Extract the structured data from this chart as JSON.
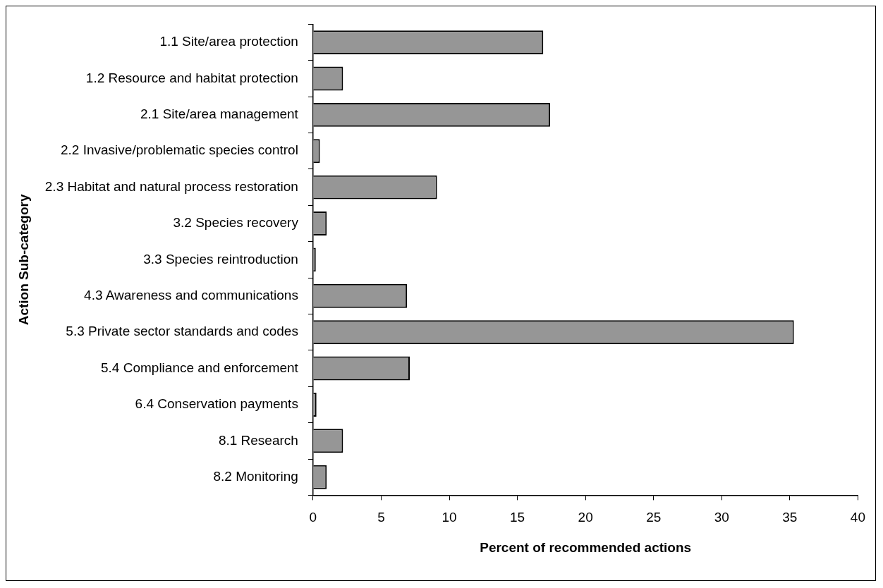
{
  "chart_data": {
    "type": "bar",
    "orientation": "horizontal",
    "xlabel": "Percent of recommended actions",
    "ylabel": "Action Sub-category",
    "categories": [
      "1.1 Site/area protection",
      "1.2 Resource and habitat protection",
      "2.1 Site/area management",
      "2.2 Invasive/problematic species control",
      "2.3 Habitat and natural process restoration",
      "3.2 Species recovery",
      "3.3 Species reintroduction",
      "4.3 Awareness and communications",
      "5.3 Private sector standards and codes",
      "5.4 Compliance and enforcement",
      "6.4 Conservation payments",
      "8.1 Research",
      "8.2 Monitoring"
    ],
    "values": [
      16.9,
      2.2,
      17.4,
      0.5,
      9.1,
      1.0,
      0.2,
      6.9,
      35.3,
      7.1,
      0.25,
      2.2,
      1.0
    ],
    "color": "#969696",
    "xlim": [
      0,
      40
    ],
    "xticks": [
      0,
      5,
      10,
      15,
      20,
      25,
      30,
      35,
      40
    ],
    "grid": false,
    "legend": false
  }
}
